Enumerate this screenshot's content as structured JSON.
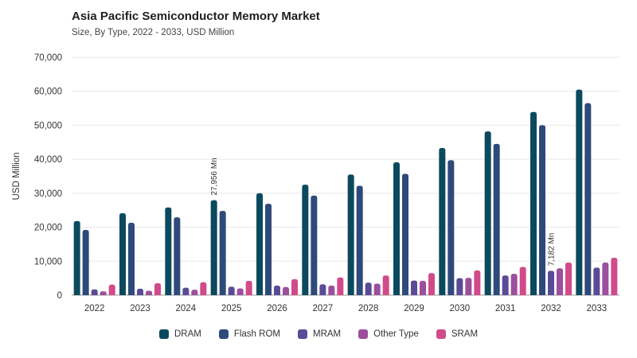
{
  "chart_data": {
    "type": "bar",
    "title": "Asia Pacific Semiconductor Memory Market",
    "subtitle": "Size, By Type, 2022 - 2033, USD Million",
    "ylabel": "USD Million",
    "xlabel": "",
    "ylim": [
      0,
      70000
    ],
    "yticks": [
      0,
      10000,
      20000,
      30000,
      40000,
      50000,
      60000,
      70000
    ],
    "ytick_labels": [
      "0",
      "10,000",
      "20,000",
      "30,000",
      "40,000",
      "50,000",
      "60,000",
      "70,000"
    ],
    "grid": true,
    "legend_position": "bottom",
    "categories": [
      "2022",
      "2023",
      "2024",
      "2025",
      "2026",
      "2027",
      "2028",
      "2029",
      "2030",
      "2031",
      "2032",
      "2033"
    ],
    "series": [
      {
        "name": "DRAM",
        "color": "#0b4a5e",
        "values": [
          21800,
          24100,
          25800,
          27956,
          30000,
          32500,
          35500,
          39100,
          43300,
          48200,
          53900,
          60500
        ]
      },
      {
        "name": "Flash ROM",
        "color": "#2e4a7a",
        "values": [
          19200,
          21300,
          22900,
          24800,
          26900,
          29300,
          32200,
          35700,
          39700,
          44500,
          50000,
          56500
        ]
      },
      {
        "name": "MRAM",
        "color": "#5b4a96",
        "values": [
          1700,
          1900,
          2200,
          2500,
          2800,
          3200,
          3700,
          4300,
          5000,
          5800,
          7182,
          8100
        ]
      },
      {
        "name": "Other Type",
        "color": "#9c4f9c",
        "values": [
          1100,
          1300,
          1600,
          2000,
          2400,
          2800,
          3400,
          4200,
          5100,
          6300,
          7900,
          9600
        ]
      },
      {
        "name": "SRAM",
        "color": "#d14b8b",
        "values": [
          3100,
          3500,
          3800,
          4200,
          4700,
          5200,
          5800,
          6500,
          7300,
          8300,
          9600,
          11000
        ]
      }
    ],
    "annotations": [
      {
        "text": "27,956 Mn",
        "category": "2025",
        "series": "DRAM"
      },
      {
        "text": "7,182 Mn",
        "category": "2032",
        "series": "MRAM"
      }
    ]
  }
}
